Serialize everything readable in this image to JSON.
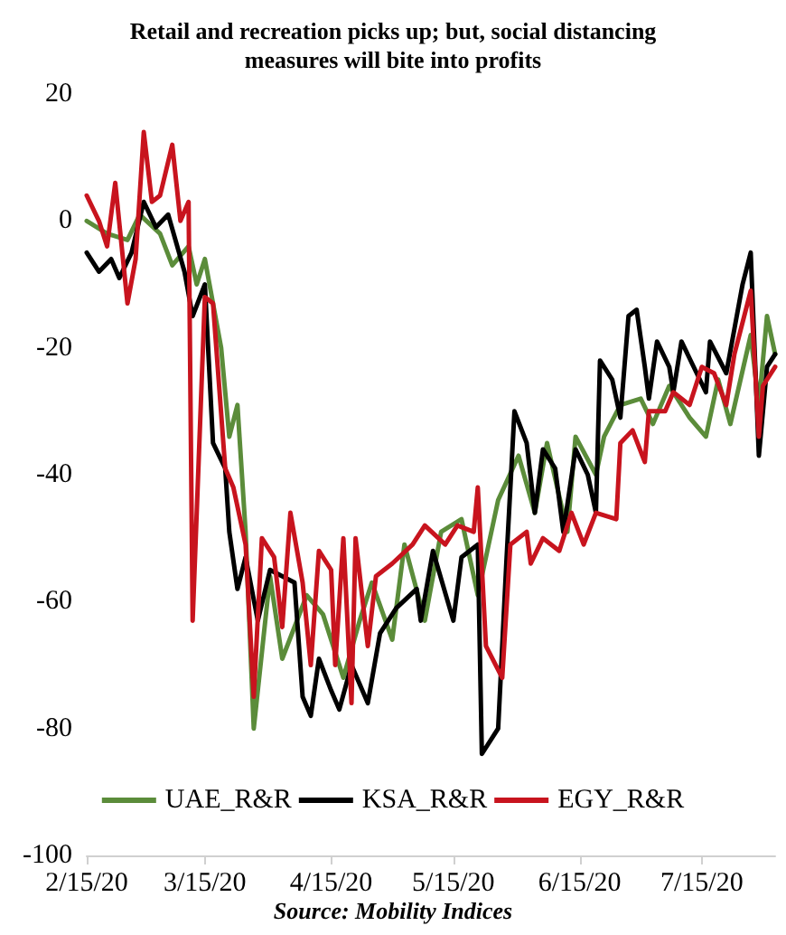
{
  "chart_data": {
    "type": "line",
    "title": "Retail and recreation picks up; but, social distancing\nmeasures will bite into profits",
    "annotations": [
      "Source: Mobility Indices"
    ],
    "xlim": [
      "2020-02-15",
      "2020-08-02"
    ],
    "xticks": [
      {
        "value": "2020-02-15",
        "label": "2/15/20"
      },
      {
        "value": "2020-03-15",
        "label": "3/15/20"
      },
      {
        "value": "2020-04-15",
        "label": "4/15/20"
      },
      {
        "value": "2020-05-15",
        "label": "5/15/20"
      },
      {
        "value": "2020-06-15",
        "label": "6/15/20"
      },
      {
        "value": "2020-07-15",
        "label": "7/15/20"
      }
    ],
    "ylim": [
      -100,
      20
    ],
    "yticks": [
      -100,
      -80,
      -60,
      -40,
      -20,
      0,
      20
    ],
    "grid": false,
    "legend": "bottom",
    "marker": "none",
    "line_style": "solid",
    "series": [
      {
        "name": "UAE_R&R",
        "color": "#5b8c3a",
        "x": [
          "2020-02-15",
          "2020-02-20",
          "2020-02-25",
          "2020-02-28",
          "2020-03-04",
          "2020-03-07",
          "2020-03-11",
          "2020-03-13",
          "2020-03-15",
          "2020-03-19",
          "2020-03-21",
          "2020-03-23",
          "2020-03-25",
          "2020-03-27",
          "2020-03-31",
          "2020-04-03",
          "2020-04-09",
          "2020-04-13",
          "2020-04-18",
          "2020-04-22",
          "2020-04-25",
          "2020-04-30",
          "2020-05-03",
          "2020-05-08",
          "2020-05-12",
          "2020-05-17",
          "2020-05-21",
          "2020-05-26",
          "2020-05-31",
          "2020-06-04",
          "2020-06-07",
          "2020-06-12",
          "2020-06-14",
          "2020-06-19",
          "2020-06-21",
          "2020-06-25",
          "2020-06-30",
          "2020-07-03",
          "2020-07-07",
          "2020-07-12",
          "2020-07-16",
          "2020-07-19",
          "2020-07-22",
          "2020-07-27",
          "2020-07-29",
          "2020-07-31",
          "2020-08-02"
        ],
        "values": [
          0,
          -2,
          -3,
          1,
          -2,
          -7,
          -4,
          -10,
          -6,
          -20,
          -34,
          -29,
          -49,
          -80,
          -56,
          -69,
          -59,
          -62,
          -72,
          -63,
          -57,
          -66,
          -51,
          -63,
          -49,
          -47,
          -59,
          -44,
          -37,
          -46,
          -35,
          -49,
          -34,
          -40,
          -34,
          -29,
          -28,
          -32,
          -26,
          -31,
          -34,
          -25,
          -32,
          -18,
          -29,
          -15,
          -21
        ]
      },
      {
        "name": "KSA_R&R",
        "color": "#000000",
        "x": [
          "2020-02-15",
          "2020-02-18",
          "2020-02-21",
          "2020-02-23",
          "2020-02-26",
          "2020-02-29",
          "2020-03-03",
          "2020-03-06",
          "2020-03-10",
          "2020-03-12",
          "2020-03-15",
          "2020-03-17",
          "2020-03-20",
          "2020-03-21",
          "2020-03-23",
          "2020-03-25",
          "2020-03-28",
          "2020-03-31",
          "2020-04-06",
          "2020-04-08",
          "2020-04-10",
          "2020-04-12",
          "2020-04-15",
          "2020-04-17",
          "2020-04-20",
          "2020-04-24",
          "2020-04-27",
          "2020-05-01",
          "2020-05-06",
          "2020-05-07",
          "2020-05-10",
          "2020-05-15",
          "2020-05-17",
          "2020-05-21",
          "2020-05-22",
          "2020-05-26",
          "2020-05-28",
          "2020-05-30",
          "2020-06-02",
          "2020-06-04",
          "2020-06-06",
          "2020-06-09",
          "2020-06-11",
          "2020-06-14",
          "2020-06-17",
          "2020-06-19",
          "2020-06-20",
          "2020-06-23",
          "2020-06-25",
          "2020-06-27",
          "2020-06-29",
          "2020-07-01",
          "2020-07-02",
          "2020-07-04",
          "2020-07-07",
          "2020-07-08",
          "2020-07-10",
          "2020-07-13",
          "2020-07-16",
          "2020-07-17",
          "2020-07-21",
          "2020-07-23",
          "2020-07-25",
          "2020-07-27",
          "2020-07-29",
          "2020-07-31",
          "2020-08-02"
        ],
        "values": [
          -5,
          -8,
          -6,
          -9,
          -5,
          3,
          -1,
          1,
          -8,
          -15,
          -10,
          -35,
          -39,
          -49,
          -58,
          -53,
          -63,
          -55,
          -57,
          -75,
          -78,
          -69,
          -74,
          -77,
          -70,
          -76,
          -65,
          -61,
          -58,
          -63,
          -52,
          -63,
          -53,
          -51,
          -84,
          -80,
          -54,
          -30,
          -35,
          -46,
          -36,
          -39,
          -49,
          -36,
          -40,
          -46,
          -22,
          -25,
          -31,
          -15,
          -14,
          -23,
          -28,
          -19,
          -23,
          -27,
          -19,
          -23,
          -27,
          -19,
          -24,
          -17,
          -10,
          -5,
          -37,
          -23,
          -21
        ]
      },
      {
        "name": "EGY_R&R",
        "color": "#c8141e",
        "x": [
          "2020-02-15",
          "2020-02-18",
          "2020-02-20",
          "2020-02-22",
          "2020-02-25",
          "2020-02-27",
          "2020-02-29",
          "2020-03-02",
          "2020-03-04",
          "2020-03-07",
          "2020-03-09",
          "2020-03-11",
          "2020-03-12",
          "2020-03-15",
          "2020-03-17",
          "2020-03-20",
          "2020-03-22",
          "2020-03-25",
          "2020-03-27",
          "2020-03-29",
          "2020-04-01",
          "2020-04-03",
          "2020-04-05",
          "2020-04-08",
          "2020-04-10",
          "2020-04-12",
          "2020-04-15",
          "2020-04-16",
          "2020-04-18",
          "2020-04-20",
          "2020-04-21",
          "2020-04-24",
          "2020-04-26",
          "2020-04-30",
          "2020-05-05",
          "2020-05-08",
          "2020-05-13",
          "2020-05-16",
          "2020-05-20",
          "2020-05-21",
          "2020-05-23",
          "2020-05-27",
          "2020-05-29",
          "2020-06-02",
          "2020-06-03",
          "2020-06-06",
          "2020-06-10",
          "2020-06-13",
          "2020-06-16",
          "2020-06-19",
          "2020-06-24",
          "2020-06-25",
          "2020-06-28",
          "2020-07-01",
          "2020-07-02",
          "2020-07-06",
          "2020-07-08",
          "2020-07-12",
          "2020-07-15",
          "2020-07-18",
          "2020-07-21",
          "2020-07-23",
          "2020-07-27",
          "2020-07-29",
          "2020-07-30",
          "2020-08-02"
        ],
        "values": [
          4,
          0,
          -4,
          6,
          -13,
          -6,
          14,
          3,
          4,
          12,
          0,
          3,
          -63,
          -12,
          -13,
          -39,
          -42,
          -51,
          -75,
          -50,
          -53,
          -64,
          -46,
          -57,
          -70,
          -52,
          -55,
          -70,
          -50,
          -76,
          -50,
          -67,
          -56,
          -54,
          -51,
          -48,
          -51,
          -48,
          -49,
          -42,
          -67,
          -72,
          -51,
          -49,
          -54,
          -50,
          -52,
          -46,
          -51,
          -46,
          -47,
          -35,
          -33,
          -38,
          -30,
          -30,
          -27,
          -29,
          -23,
          -24,
          -29,
          -21,
          -11,
          -34,
          -26,
          -23
        ]
      }
    ]
  }
}
